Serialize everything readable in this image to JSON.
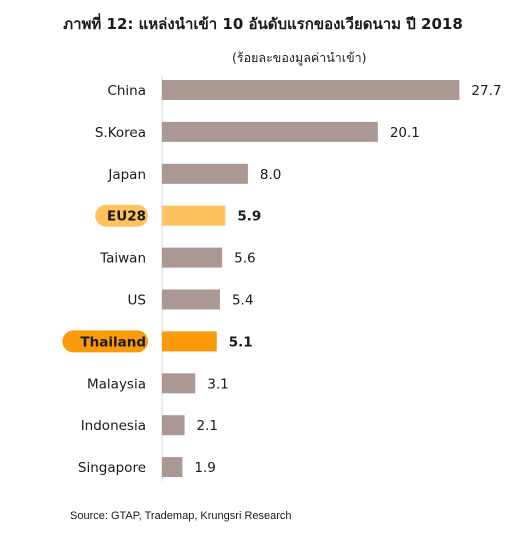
{
  "chart_data": {
    "type": "bar",
    "orientation": "horizontal",
    "title": "ภาพที่ 12: แหล่งนำเข้า 10 อันดับแรกของเวียดนาม ปี 2018",
    "subtitle": "(ร้อยละของมูลค่านำเข้า)",
    "categories": [
      "China",
      "S.Korea",
      "Japan",
      "EU28",
      "Taiwan",
      "US",
      "Thailand",
      "Malaysia",
      "Indonesia",
      "Singapore"
    ],
    "values": [
      27.7,
      20.1,
      8.0,
      5.9,
      5.6,
      5.4,
      5.1,
      3.1,
      2.1,
      1.9
    ],
    "value_labels": [
      "27.7",
      "20.1",
      "8.0",
      "5.9",
      "5.6",
      "5.4",
      "5.1",
      "3.1",
      "2.1",
      "1.9"
    ],
    "highlighted": [
      "EU28",
      "Thailand"
    ],
    "xlim": [
      0,
      28
    ],
    "grid": false,
    "source": "Source: GTAP, Trademap, Krungsri Research"
  },
  "colors": {
    "default_bar": "#ac9893",
    "EU28": "#ffc25e",
    "Thailand": "#fb9a0b"
  }
}
